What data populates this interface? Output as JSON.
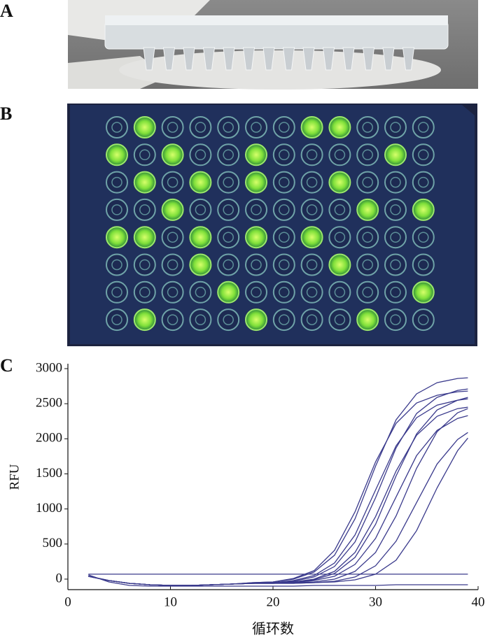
{
  "panels": {
    "a": "A",
    "b": "B",
    "c": "C"
  },
  "chart_data": {
    "type": "line",
    "ylabel": "RFU",
    "xlabel": "循环数",
    "x": [
      2,
      4,
      6,
      8,
      10,
      12,
      14,
      16,
      18,
      20,
      22,
      24,
      26,
      28,
      30,
      32,
      34,
      36,
      38,
      39
    ],
    "xlim": [
      0,
      40
    ],
    "xticks": [
      0,
      10,
      20,
      30,
      40
    ],
    "ylim": [
      -150,
      3070
    ],
    "yticks": [
      0,
      500,
      1000,
      1500,
      2000,
      2500,
      3000
    ],
    "color": "#3a3a8c",
    "series": [
      {
        "values": [
          40,
          -20,
          -60,
          -80,
          -90,
          -90,
          -80,
          -70,
          -50,
          -40,
          10,
          120,
          410,
          960,
          1670,
          2220,
          2510,
          2620,
          2670,
          2680
        ]
      },
      {
        "values": [
          40,
          -20,
          -60,
          -80,
          -90,
          -90,
          -80,
          -70,
          -60,
          -50,
          -20,
          50,
          230,
          630,
          1270,
          1900,
          2300,
          2480,
          2550,
          2570
        ]
      },
      {
        "values": [
          40,
          -20,
          -60,
          -80,
          -90,
          -90,
          -80,
          -70,
          -60,
          -50,
          -30,
          30,
          180,
          530,
          1160,
          1870,
          2360,
          2590,
          2690,
          2710
        ]
      },
      {
        "values": [
          40,
          -20,
          -60,
          -80,
          -90,
          -90,
          -80,
          -70,
          -60,
          -50,
          -40,
          0,
          110,
          380,
          890,
          1540,
          2050,
          2320,
          2430,
          2450
        ]
      },
      {
        "values": [
          40,
          -20,
          -60,
          -80,
          -90,
          -90,
          -80,
          -70,
          -60,
          -50,
          -40,
          -10,
          80,
          310,
          780,
          1470,
          2070,
          2410,
          2550,
          2590
        ]
      },
      {
        "values": [
          40,
          -20,
          -60,
          -80,
          -90,
          -90,
          -80,
          -70,
          -60,
          -60,
          -50,
          -20,
          40,
          210,
          580,
          1170,
          1760,
          2120,
          2290,
          2330
        ]
      },
      {
        "values": [
          40,
          -20,
          -60,
          -80,
          -90,
          -90,
          -80,
          -70,
          -60,
          -60,
          -50,
          -40,
          0,
          110,
          380,
          900,
          1580,
          2100,
          2370,
          2430
        ]
      },
      {
        "values": [
          40,
          -20,
          -60,
          -80,
          -90,
          -90,
          -80,
          -70,
          -60,
          -60,
          -60,
          -50,
          -30,
          30,
          190,
          540,
          1090,
          1640,
          1990,
          2090
        ]
      },
      {
        "values": [
          40,
          -20,
          -60,
          -80,
          -90,
          -90,
          -80,
          -70,
          -50,
          -40,
          0,
          100,
          340,
          860,
          1610,
          2270,
          2640,
          2800,
          2860,
          2870
        ]
      },
      {
        "values": [
          40,
          -20,
          -60,
          -80,
          -90,
          -90,
          -80,
          -70,
          -60,
          -60,
          -60,
          -50,
          -40,
          -10,
          70,
          270,
          690,
          1300,
          1830,
          2010
        ]
      },
      {
        "values": [
          70,
          70,
          70,
          70,
          70,
          70,
          70,
          70,
          70,
          70,
          70,
          70,
          70,
          70,
          70,
          70,
          70,
          70,
          70,
          70
        ]
      },
      {
        "values": [
          60,
          -40,
          -90,
          -100,
          -100,
          -100,
          -100,
          -100,
          -100,
          -100,
          -100,
          -90,
          -90,
          -90,
          -90,
          -80,
          -80,
          -80,
          -80,
          -80
        ]
      }
    ]
  }
}
